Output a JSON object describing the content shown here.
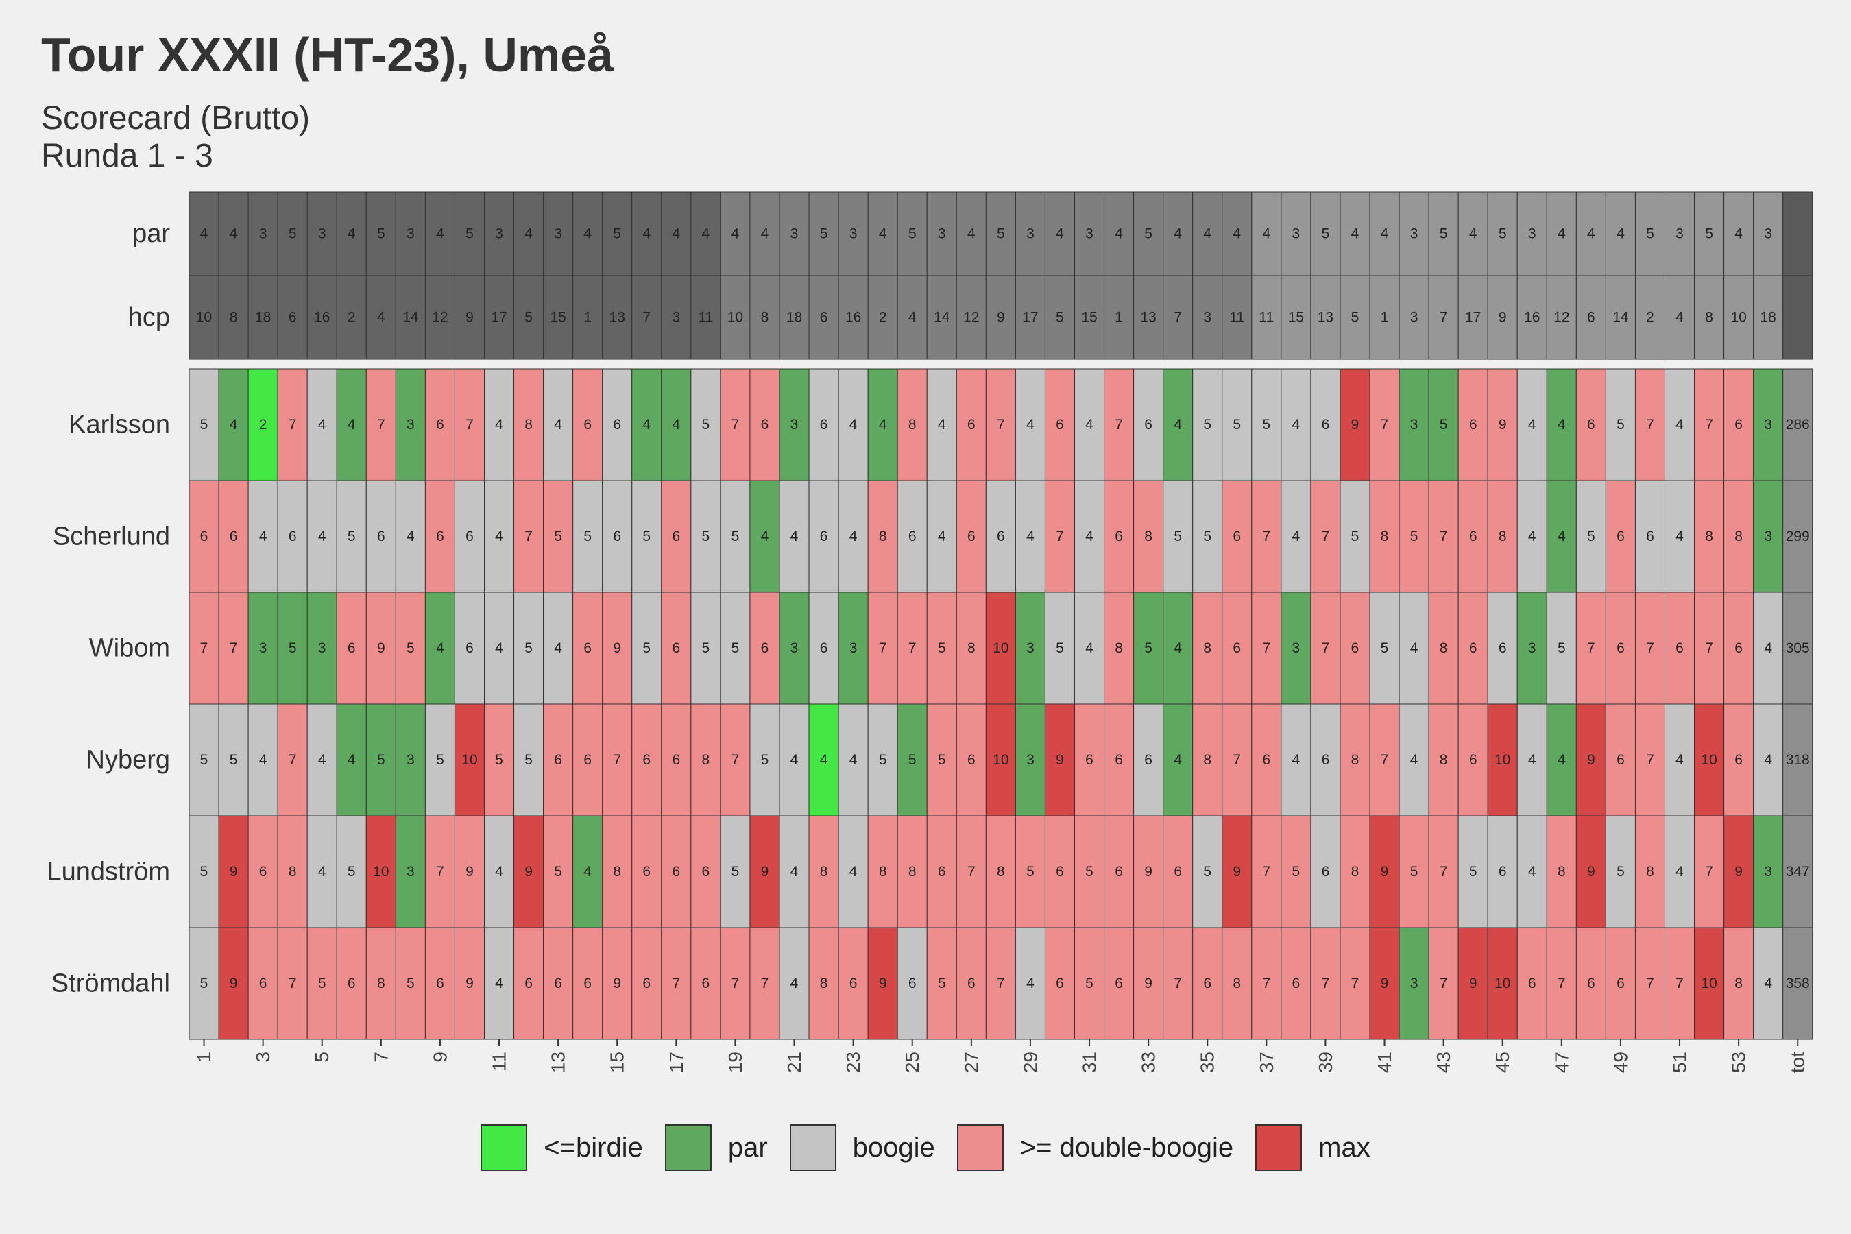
{
  "title": "Tour XXXII (HT-23), Umeå",
  "subtitle_line1": "Scorecard (Brutto)",
  "subtitle_line2": "Runda 1 - 3",
  "chart_data": {
    "type": "heatmap",
    "holes": [
      "1",
      "2",
      "3",
      "4",
      "5",
      "6",
      "7",
      "8",
      "9",
      "10",
      "11",
      "12",
      "13",
      "14",
      "15",
      "16",
      "17",
      "18",
      "19",
      "20",
      "21",
      "22",
      "23",
      "24",
      "25",
      "26",
      "27",
      "28",
      "29",
      "30",
      "31",
      "32",
      "33",
      "34",
      "35",
      "36",
      "37",
      "38",
      "39",
      "40",
      "41",
      "42",
      "43",
      "44",
      "45",
      "46",
      "47",
      "48",
      "49",
      "50",
      "51",
      "52",
      "53",
      "54"
    ],
    "x_tick_labels": [
      "1",
      "3",
      "5",
      "7",
      "9",
      "11",
      "13",
      "15",
      "17",
      "19",
      "21",
      "23",
      "25",
      "27",
      "29",
      "31",
      "33",
      "35",
      "37",
      "39",
      "41",
      "43",
      "45",
      "47",
      "49",
      "51",
      "53",
      "tot"
    ],
    "total_label": "tot",
    "par": {
      "label": "par",
      "values": [
        4,
        4,
        3,
        5,
        3,
        4,
        5,
        3,
        4,
        5,
        3,
        4,
        3,
        4,
        5,
        4,
        4,
        4,
        4,
        4,
        3,
        5,
        3,
        4,
        5,
        3,
        4,
        5,
        3,
        4,
        3,
        4,
        5,
        4,
        4,
        4,
        4,
        3,
        5,
        4,
        4,
        3,
        5,
        4,
        5,
        3,
        4,
        4,
        4,
        5,
        3,
        5,
        4,
        3
      ]
    },
    "hcp": {
      "label": "hcp",
      "values": [
        10,
        8,
        18,
        6,
        16,
        2,
        4,
        14,
        12,
        9,
        17,
        5,
        15,
        1,
        13,
        7,
        3,
        11,
        10,
        8,
        18,
        6,
        16,
        2,
        4,
        14,
        12,
        9,
        17,
        5,
        15,
        1,
        13,
        7,
        3,
        11,
        11,
        15,
        13,
        5,
        1,
        3,
        7,
        17,
        9,
        16,
        12,
        6,
        14,
        2,
        4,
        8,
        10,
        18
      ]
    },
    "players": [
      {
        "name": "Karlsson",
        "total": 286,
        "scores": [
          5,
          4,
          2,
          7,
          4,
          4,
          7,
          3,
          6,
          7,
          4,
          8,
          4,
          6,
          6,
          4,
          4,
          5,
          7,
          6,
          3,
          6,
          4,
          4,
          8,
          4,
          6,
          7,
          4,
          6,
          4,
          7,
          6,
          4,
          5,
          5,
          5,
          4,
          6,
          9,
          7,
          3,
          5,
          6,
          9,
          4,
          4,
          6,
          5,
          7,
          4,
          7,
          6,
          3
        ],
        "max_holes": [
          40
        ]
      },
      {
        "name": "Scherlund",
        "total": 299,
        "scores": [
          6,
          6,
          4,
          6,
          4,
          5,
          6,
          4,
          6,
          6,
          4,
          7,
          5,
          5,
          6,
          5,
          6,
          5,
          5,
          4,
          4,
          6,
          4,
          8,
          6,
          4,
          6,
          6,
          4,
          7,
          4,
          6,
          8,
          5,
          5,
          6,
          7,
          4,
          7,
          5,
          8,
          5,
          7,
          6,
          8,
          4,
          4,
          5,
          6,
          6,
          4,
          8,
          8,
          3
        ],
        "max_holes": []
      },
      {
        "name": "Wibom",
        "total": 305,
        "scores": [
          7,
          7,
          3,
          5,
          3,
          6,
          9,
          5,
          4,
          6,
          4,
          5,
          4,
          6,
          9,
          5,
          6,
          5,
          5,
          6,
          3,
          6,
          3,
          7,
          7,
          5,
          8,
          10,
          3,
          5,
          4,
          8,
          5,
          4,
          8,
          6,
          7,
          3,
          7,
          6,
          5,
          4,
          8,
          6,
          6,
          3,
          5,
          7,
          6,
          7,
          6,
          7,
          6,
          4
        ],
        "max_holes": [
          28
        ]
      },
      {
        "name": "Nyberg",
        "total": 318,
        "scores": [
          5,
          5,
          4,
          7,
          4,
          4,
          5,
          3,
          5,
          10,
          5,
          5,
          6,
          6,
          7,
          6,
          6,
          8,
          7,
          5,
          4,
          4,
          4,
          5,
          5,
          5,
          6,
          10,
          3,
          9,
          6,
          6,
          6,
          4,
          8,
          7,
          6,
          4,
          6,
          8,
          7,
          4,
          8,
          6,
          10,
          4,
          4,
          9,
          6,
          7,
          4,
          10,
          6,
          4
        ],
        "max_holes": [
          10,
          28,
          30,
          45,
          48,
          52
        ]
      },
      {
        "name": "Lundström",
        "total": 347,
        "scores": [
          5,
          9,
          6,
          8,
          4,
          5,
          10,
          3,
          7,
          9,
          4,
          9,
          5,
          4,
          8,
          6,
          6,
          6,
          5,
          9,
          4,
          8,
          4,
          8,
          8,
          6,
          7,
          8,
          5,
          6,
          5,
          6,
          9,
          6,
          5,
          9,
          7,
          5,
          6,
          8,
          9,
          5,
          7,
          5,
          6,
          4,
          8,
          9,
          5,
          8,
          4,
          7,
          9,
          3
        ],
        "max_holes": [
          2,
          7,
          12,
          20,
          36,
          41,
          48,
          53
        ]
      },
      {
        "name": "Strömdahl",
        "total": 358,
        "scores": [
          5,
          9,
          6,
          7,
          5,
          6,
          8,
          5,
          6,
          9,
          4,
          6,
          6,
          6,
          9,
          6,
          7,
          6,
          7,
          7,
          4,
          8,
          6,
          9,
          6,
          5,
          6,
          7,
          4,
          6,
          5,
          6,
          9,
          7,
          6,
          8,
          7,
          6,
          7,
          7,
          9,
          3,
          7,
          9,
          10,
          6,
          7,
          6,
          6,
          7,
          7,
          10,
          8,
          4
        ],
        "max_holes": [
          2,
          24,
          41,
          44,
          45,
          52
        ]
      }
    ],
    "legend": [
      {
        "key": "birdie",
        "label": "<=birdie",
        "color": "#44e844"
      },
      {
        "key": "par",
        "label": "par",
        "color": "#5fa85f"
      },
      {
        "key": "boogie",
        "label": "boogie",
        "color": "#c4c4c4"
      },
      {
        "key": "double",
        "label": ">= double-boogie",
        "color": "#ee8d8d"
      },
      {
        "key": "max",
        "label": "max",
        "color": "#d64848"
      }
    ],
    "header_colors": {
      "run1": "#646464",
      "run2": "#7f7f7f",
      "run3": "#979797",
      "total": "#5a5a5a",
      "total_col": "#8e8e8e"
    }
  }
}
